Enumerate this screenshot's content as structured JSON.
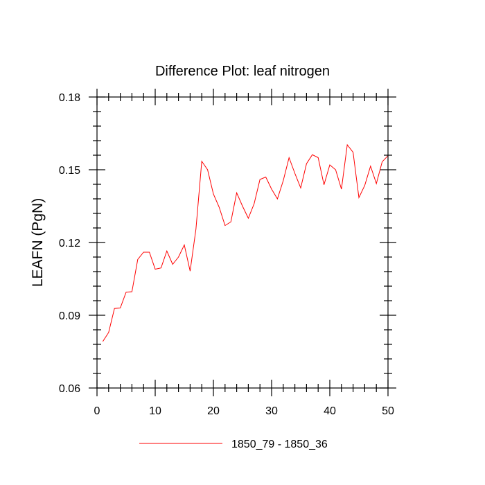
{
  "chart_data": {
    "type": "line",
    "title": "Difference Plot: leaf nitrogen",
    "xlabel": "",
    "ylabel": "LEAFN  (PgN)",
    "xlim": [
      0,
      50
    ],
    "ylim": [
      0.06,
      0.18
    ],
    "xticks": [
      0,
      10,
      20,
      30,
      40,
      50
    ],
    "xtick_labels": [
      "0",
      "10",
      "20",
      "30",
      "40",
      "50"
    ],
    "yticks": [
      0.06,
      0.09,
      0.12,
      0.15,
      0.18
    ],
    "ytick_labels": [
      "0.06",
      "0.09",
      "0.12",
      "0.15",
      "0.18"
    ],
    "grid": false,
    "legend_position": "bottom-center",
    "series": [
      {
        "name": "1850_79 - 1850_36",
        "color": "#ff0000",
        "x": [
          1,
          2,
          3,
          4,
          5,
          6,
          7,
          8,
          9,
          10,
          11,
          12,
          13,
          14,
          15,
          16,
          17,
          18,
          19,
          20,
          21,
          22,
          23,
          24,
          25,
          26,
          27,
          28,
          29,
          30,
          31,
          32,
          33,
          34,
          35,
          36,
          37,
          38,
          39,
          40,
          41,
          42,
          43,
          44,
          45,
          46,
          47,
          48,
          49,
          50
        ],
        "y": [
          0.0792,
          0.0829,
          0.0928,
          0.093,
          0.0995,
          0.0997,
          0.113,
          0.116,
          0.116,
          0.109,
          0.1095,
          0.1165,
          0.111,
          0.114,
          0.119,
          0.1082,
          0.1255,
          0.1535,
          0.15,
          0.14,
          0.1345,
          0.127,
          0.1285,
          0.1405,
          0.135,
          0.13,
          0.136,
          0.146,
          0.147,
          0.142,
          0.138,
          0.1455,
          0.155,
          0.1485,
          0.1425,
          0.1525,
          0.1562,
          0.155,
          0.1438,
          0.152,
          0.15,
          0.142,
          0.1603,
          0.1572,
          0.1385,
          0.1435,
          0.1515,
          0.1443,
          0.1533,
          0.1558
        ]
      }
    ]
  }
}
